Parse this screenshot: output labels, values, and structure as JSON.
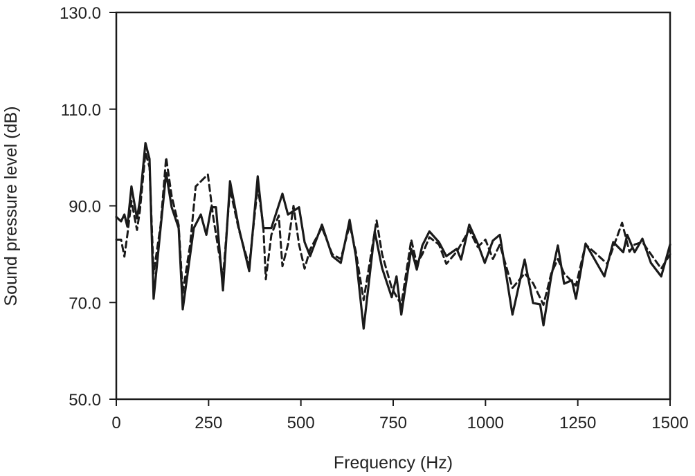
{
  "chart_data": {
    "type": "line",
    "title": "",
    "xlabel": "Frequency (Hz)",
    "ylabel": "Sound pressure level (dB)",
    "xlim": [
      0,
      1500
    ],
    "ylim": [
      50,
      130
    ],
    "xticks": [
      0,
      250,
      500,
      750,
      1000,
      1250,
      1500
    ],
    "xtick_labels": [
      "0",
      "250",
      "500",
      "750",
      "1000",
      "1250",
      "1500"
    ],
    "yticks": [
      50,
      70,
      90,
      110,
      130
    ],
    "ytick_labels": [
      "50.0",
      "70.0",
      "90.0",
      "110.0",
      "130.0"
    ],
    "grid": false,
    "legend": null,
    "series": [
      {
        "name": "solid",
        "style": "solid",
        "color": "#1a1a1a",
        "x": [
          0,
          13,
          22,
          30,
          41,
          56,
          64,
          79,
          90,
          101,
          120,
          135,
          150,
          169,
          180,
          210,
          229,
          244,
          257,
          270,
          289,
          308,
          332,
          360,
          383,
          398,
          420,
          450,
          465,
          495,
          510,
          525,
          557,
          585,
          608,
          632,
          649,
          670,
          700,
          720,
          746,
          759,
          772,
          799,
          814,
          829,
          848,
          874,
          894,
          922,
          934,
          956,
          979,
          998,
          1020,
          1039,
          1073,
          1106,
          1129,
          1148,
          1157,
          1178,
          1196,
          1213,
          1234,
          1245,
          1271,
          1301,
          1322,
          1346,
          1373,
          1384,
          1404,
          1425,
          1448,
          1476,
          1500
        ],
        "y": [
          87.7,
          86.8,
          88.2,
          85.7,
          94.0,
          87.4,
          91.1,
          103.0,
          99.7,
          70.8,
          85.4,
          96.8,
          89.7,
          85.4,
          68.6,
          85.4,
          88.2,
          84.0,
          89.7,
          89.7,
          72.5,
          95.1,
          85.4,
          76.5,
          96.1,
          85.4,
          85.4,
          92.5,
          88.2,
          89.7,
          82.5,
          79.6,
          86.1,
          79.6,
          78.2,
          87.1,
          79.6,
          64.6,
          84.7,
          77.1,
          71.1,
          75.4,
          67.5,
          81.1,
          76.8,
          81.8,
          84.7,
          82.5,
          79.6,
          81.1,
          78.9,
          86.1,
          82.2,
          78.2,
          82.8,
          84.0,
          67.5,
          78.9,
          69.9,
          69.6,
          65.3,
          75.4,
          81.8,
          73.9,
          74.6,
          70.8,
          82.2,
          78.2,
          75.4,
          82.5,
          80.4,
          84.0,
          80.4,
          83.2,
          78.2,
          75.4,
          82.0
        ]
      },
      {
        "name": "dashed",
        "style": "dashed",
        "color": "#1a1a1a",
        "x": [
          0,
          13,
          22,
          30,
          41,
          56,
          64,
          79,
          90,
          101,
          120,
          135,
          150,
          169,
          180,
          200,
          215,
          248,
          262,
          289,
          308,
          332,
          360,
          383,
          398,
          405,
          420,
          440,
          450,
          465,
          480,
          495,
          510,
          525,
          557,
          585,
          608,
          632,
          649,
          670,
          705,
          720,
          746,
          772,
          799,
          814,
          829,
          848,
          874,
          894,
          922,
          956,
          979,
          1000,
          1020,
          1039,
          1073,
          1106,
          1129,
          1157,
          1178,
          1196,
          1213,
          1245,
          1271,
          1301,
          1330,
          1370,
          1390,
          1404,
          1425,
          1448,
          1476,
          1500
        ],
        "y": [
          83.0,
          83.0,
          79.5,
          84.0,
          91.0,
          85.0,
          89.0,
          101.0,
          98.0,
          76.0,
          86.0,
          100.0,
          92.0,
          86.0,
          72.0,
          82.0,
          94.0,
          96.5,
          88.0,
          75.0,
          93.5,
          85.0,
          77.5,
          94.0,
          86.0,
          74.8,
          84.0,
          88.0,
          77.5,
          82.0,
          90.0,
          82.0,
          77.0,
          81.0,
          85.5,
          80.0,
          79.0,
          86.0,
          80.5,
          70.5,
          87.0,
          80.0,
          73.0,
          69.5,
          83.0,
          78.0,
          80.0,
          83.5,
          82.0,
          78.0,
          80.5,
          85.0,
          81.5,
          83.0,
          79.0,
          82.0,
          73.0,
          76.0,
          74.0,
          69.5,
          76.0,
          79.0,
          76.0,
          73.5,
          82.0,
          80.0,
          78.0,
          86.5,
          80.5,
          82.0,
          82.5,
          80.0,
          77.0,
          80.0
        ]
      }
    ]
  }
}
